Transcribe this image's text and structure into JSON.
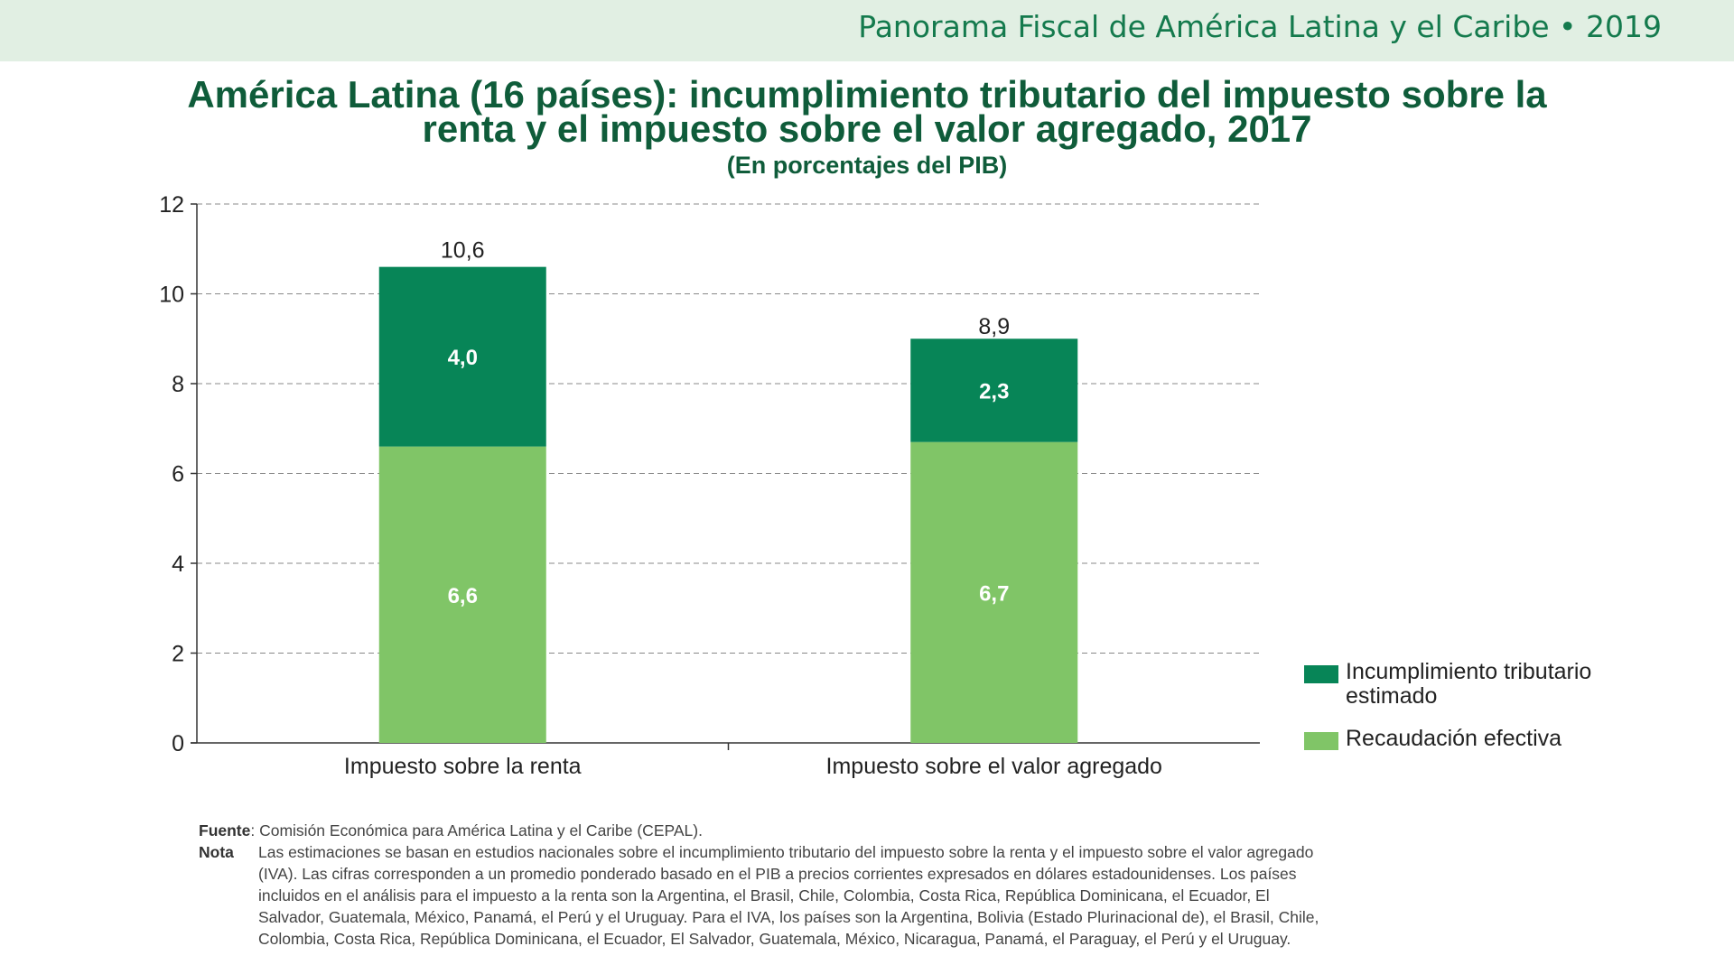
{
  "header": {
    "brand": "Panorama Fiscal de América Latina y el Caribe • 2019"
  },
  "colors": {
    "header_bg": "#e1efe3",
    "title": "#0f5c3a",
    "dark_green": "#078557",
    "light_green": "#80c567"
  },
  "chart_data": {
    "type": "bar",
    "stacked": true,
    "title": "América Latina (16 países): incumplimiento tributario del impuesto sobre la renta y el impuesto sobre el valor agregado, 2017",
    "subtitle": "(En porcentajes del PIB)",
    "categories": [
      "Impuesto sobre la renta",
      "Impuesto sobre el valor agregado"
    ],
    "series": [
      {
        "name": "Recaudación efectiva",
        "values": [
          6.6,
          6.7
        ],
        "labels": [
          "6,6",
          "6,7"
        ],
        "color": "#80c567"
      },
      {
        "name": "Incumplimiento tributario estimado",
        "values": [
          4.0,
          2.3
        ],
        "labels": [
          "4,0",
          "2,3"
        ],
        "color": "#078557"
      }
    ],
    "totals": [
      10.6,
      8.9
    ],
    "total_labels": [
      "10,6",
      "8,9"
    ],
    "ylim": [
      0,
      12
    ],
    "yticks": [
      0,
      2,
      4,
      6,
      8,
      10,
      12
    ],
    "grid": true,
    "legend": "right"
  },
  "legend": {
    "items": [
      {
        "label": "Incumplimiento tributario estimado",
        "color": "#078557"
      },
      {
        "label": "Recaudación efectiva",
        "color": "#80c567"
      }
    ]
  },
  "notes": {
    "fuente_label": "Fuente",
    "fuente_text": ": Comisión Económica para América Latina y el Caribe (CEPAL).",
    "nota_label": "Nota",
    "nota_text": "Las estimaciones se basan en estudios nacionales sobre el incumplimiento tributario del impuesto sobre la renta y el impuesto sobre el valor agregado (IVA). Las cifras corresponden a un promedio ponderado basado en el PIB a precios corrientes expresados en dólares estadounidenses. Los países incluidos en el análisis para el impuesto a la renta son la Argentina, el Brasil, Chile, Colombia, Costa Rica, República Dominicana, el Ecuador, El Salvador, Guatemala, México, Panamá, el Perú y el Uruguay. Para el IVA, los países son la Argentina, Bolivia (Estado Plurinacional de), el Brasil, Chile, Colombia, Costa Rica, República Dominicana, el Ecuador, El Salvador, Guatemala, México, Nicaragua, Panamá, el Paraguay, el Perú y el Uruguay."
  }
}
